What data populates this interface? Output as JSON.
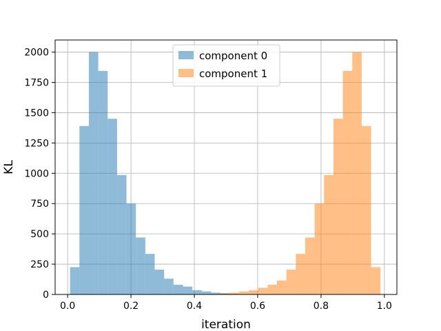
{
  "chart_data": {
    "type": "bar",
    "subtype": "histogram",
    "title": "",
    "xlabel": "iteration",
    "ylabel": "KL",
    "xlim": [
      -0.0395,
      1.0395
    ],
    "ylim": [
      0,
      2100
    ],
    "xticks": [
      0.0,
      0.2,
      0.4,
      0.6,
      0.8,
      1.0
    ],
    "xtick_labels": [
      "0.0",
      "0.2",
      "0.4",
      "0.6",
      "0.8",
      "1.0"
    ],
    "yticks": [
      0,
      250,
      500,
      750,
      1000,
      1250,
      1500,
      1750,
      2000
    ],
    "ytick_labels": [
      "0",
      "250",
      "500",
      "750",
      "1000",
      "1250",
      "1500",
      "1750",
      "2000"
    ],
    "grid": true,
    "legend_position": "upper center",
    "bin_edges": [
      0.0076,
      0.0373,
      0.067,
      0.0967,
      0.1264,
      0.1561,
      0.1858,
      0.2155,
      0.2452,
      0.2749,
      0.3046,
      0.3343,
      0.364,
      0.3937,
      0.4234,
      0.4531,
      0.4828,
      0.5125,
      0.5422,
      0.5719,
      0.6016,
      0.6313,
      0.661,
      0.6907,
      0.7204,
      0.7501,
      0.7798,
      0.8095,
      0.8392,
      0.8689,
      0.8986,
      0.9283,
      0.958,
      0.9877
    ],
    "series": [
      {
        "name": "component 0",
        "color": "#1f77b4",
        "opacity": 0.5,
        "values": [
          225,
          1390,
          2000,
          1845,
          1450,
          985,
          750,
          470,
          335,
          205,
          130,
          80,
          65,
          35,
          25,
          15,
          10,
          5,
          0,
          0,
          0,
          0,
          0,
          0,
          0,
          0,
          0,
          0,
          0,
          0,
          0,
          0,
          0
        ]
      },
      {
        "name": "component 1",
        "color": "#ff7f0e",
        "opacity": 0.5,
        "values": [
          0,
          0,
          0,
          0,
          0,
          0,
          0,
          0,
          0,
          0,
          0,
          0,
          0,
          0,
          0,
          5,
          10,
          15,
          25,
          35,
          55,
          80,
          115,
          205,
          335,
          470,
          750,
          985,
          1450,
          1845,
          2000,
          1390,
          225
        ]
      }
    ]
  }
}
